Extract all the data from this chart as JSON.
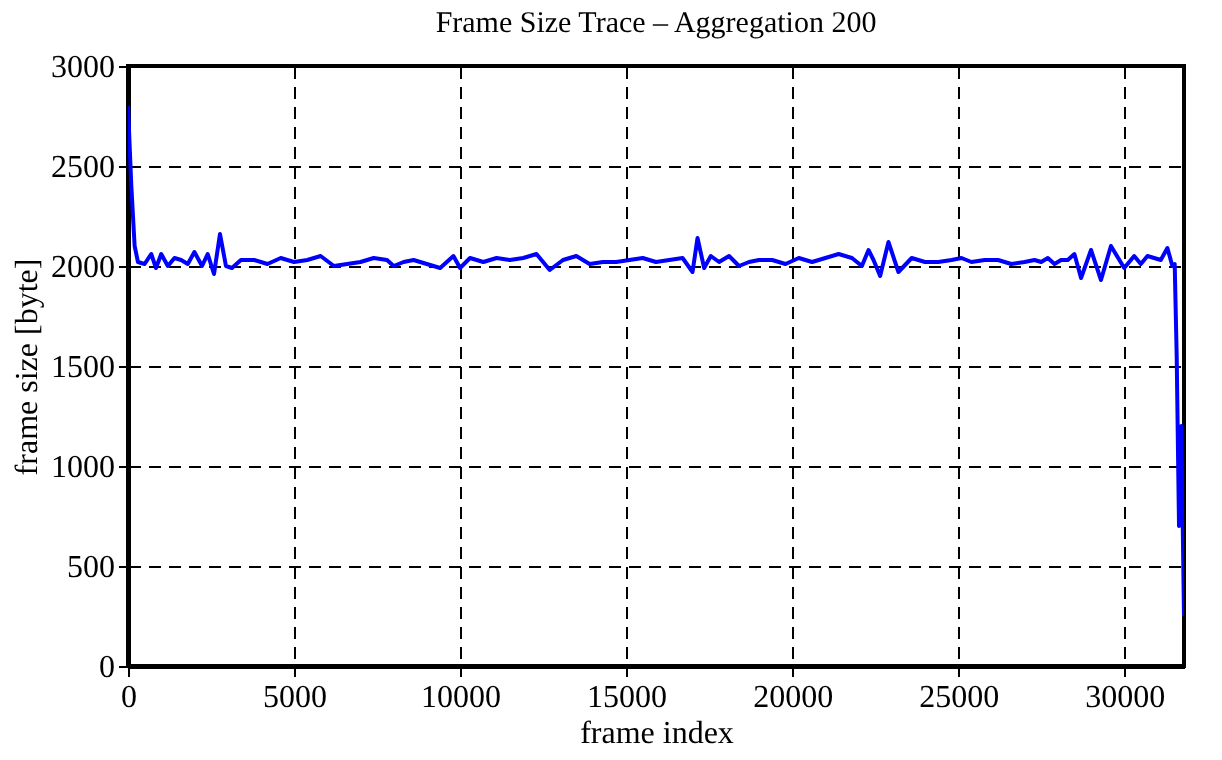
{
  "chart_data": {
    "type": "line",
    "title": "Frame Size Trace – Aggregation 200",
    "xlabel": "frame index",
    "ylabel": "frame size [byte]",
    "xlim": [
      0,
      31800
    ],
    "ylim": [
      0,
      3000
    ],
    "xticks": [
      0,
      5000,
      10000,
      15000,
      20000,
      25000,
      30000
    ],
    "yticks": [
      0,
      500,
      1000,
      1500,
      2000,
      2500,
      3000
    ],
    "grid": true,
    "line_style": "solid",
    "marker": "none",
    "series": [
      {
        "color": "#0000ff",
        "x": [
          0,
          100,
          200,
          300,
          500,
          700,
          843,
          1000,
          1200,
          1400,
          1600,
          1800,
          2000,
          2230,
          2400,
          2590,
          2770,
          2950,
          3130,
          3400,
          3800,
          4200,
          4600,
          5000,
          5400,
          5800,
          6200,
          6600,
          7000,
          7400,
          7800,
          8000,
          8300,
          8600,
          9000,
          9400,
          9800,
          10000,
          10300,
          10700,
          11100,
          11500,
          11900,
          12300,
          12700,
          13100,
          13500,
          13900,
          14300,
          14700,
          15100,
          15500,
          15900,
          16300,
          16700,
          17000,
          17150,
          17350,
          17550,
          17800,
          18100,
          18400,
          18700,
          19000,
          19400,
          19800,
          20200,
          20600,
          21000,
          21400,
          21800,
          22100,
          22300,
          22450,
          22650,
          22900,
          23200,
          23600,
          24000,
          24400,
          24800,
          25100,
          25400,
          25800,
          26200,
          26600,
          27000,
          27300,
          27500,
          27700,
          27900,
          28100,
          28300,
          28500,
          28700,
          29000,
          29300,
          29600,
          30000,
          30300,
          30500,
          30700,
          30900,
          31100,
          31300,
          31450,
          31520,
          31580,
          31650,
          31720,
          31800
        ],
        "values": [
          2800,
          2400,
          2100,
          2020,
          2010,
          2060,
          1990,
          2060,
          2000,
          2040,
          2030,
          2010,
          2070,
          2000,
          2060,
          1960,
          2160,
          2000,
          1990,
          2030,
          2030,
          2010,
          2040,
          2020,
          2030,
          2050,
          2000,
          2010,
          2020,
          2040,
          2030,
          2000,
          2020,
          2030,
          2010,
          1990,
          2050,
          1990,
          2040,
          2020,
          2040,
          2030,
          2040,
          2060,
          1980,
          2030,
          2050,
          2010,
          2020,
          2020,
          2030,
          2040,
          2020,
          2030,
          2040,
          1970,
          2140,
          1990,
          2050,
          2020,
          2050,
          2000,
          2020,
          2030,
          2030,
          2010,
          2040,
          2020,
          2040,
          2060,
          2040,
          2000,
          2080,
          2030,
          1950,
          2120,
          1970,
          2040,
          2020,
          2020,
          2030,
          2040,
          2020,
          2030,
          2030,
          2010,
          2020,
          2030,
          2020,
          2040,
          2010,
          2030,
          2030,
          2060,
          1940,
          2080,
          1930,
          2100,
          1990,
          2050,
          2010,
          2050,
          2040,
          2030,
          2090,
          2000,
          2010,
          1550,
          700,
          1200,
          250
        ]
      }
    ]
  }
}
